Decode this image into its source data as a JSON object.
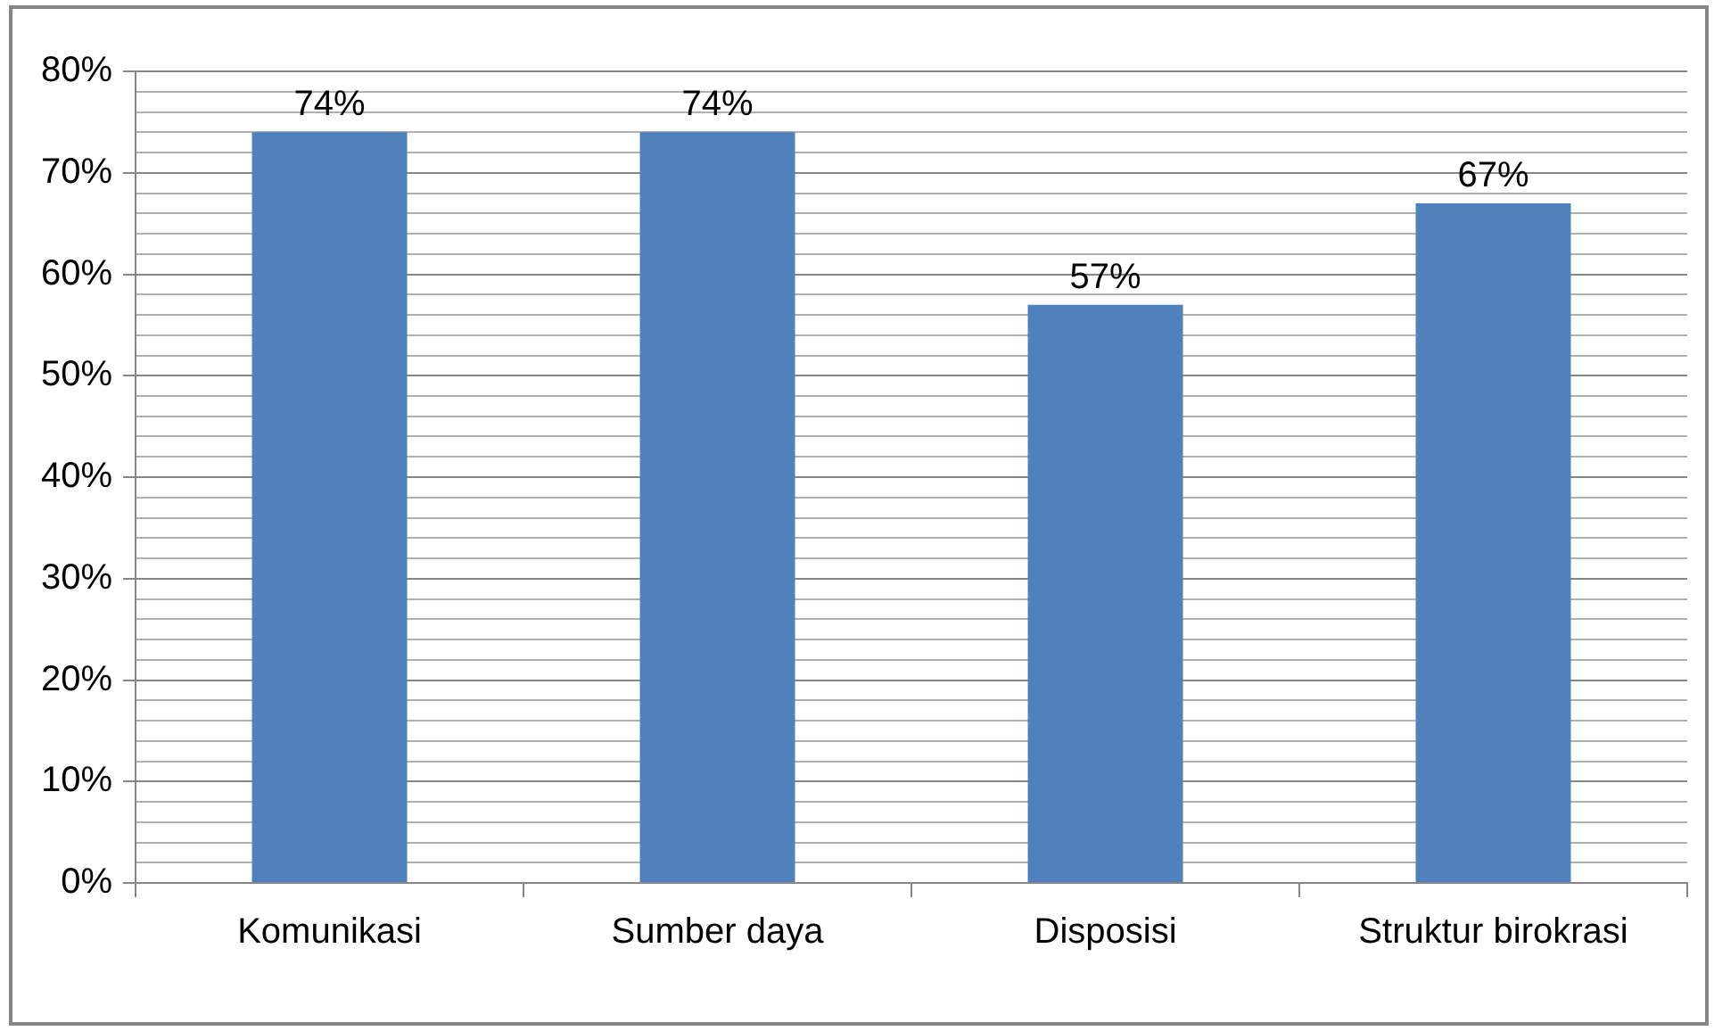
{
  "chart_data": {
    "type": "bar",
    "categories": [
      "Komunikasi",
      "Sumber daya",
      "Disposisi",
      "Struktur birokrasi"
    ],
    "values": [
      74,
      74,
      57,
      67
    ],
    "color": "#4f81bd",
    "value_labels": [
      "74%",
      "74%",
      "57%",
      "67%"
    ],
    "ylim": [
      0,
      80
    ],
    "yticks": [
      {
        "value": 0,
        "label": "0%"
      },
      {
        "value": 2,
        "label": null
      },
      {
        "value": 4,
        "label": null
      },
      {
        "value": 6,
        "label": null
      },
      {
        "value": 8,
        "label": null
      },
      {
        "value": 10,
        "label": "10%"
      },
      {
        "value": 12,
        "label": null
      },
      {
        "value": 14,
        "label": null
      },
      {
        "value": 16,
        "label": null
      },
      {
        "value": 18,
        "label": null
      },
      {
        "value": 20,
        "label": "20%"
      },
      {
        "value": 22,
        "label": null
      },
      {
        "value": 24,
        "label": null
      },
      {
        "value": 26,
        "label": null
      },
      {
        "value": 28,
        "label": null
      },
      {
        "value": 30,
        "label": "30%"
      },
      {
        "value": 32,
        "label": null
      },
      {
        "value": 34,
        "label": null
      },
      {
        "value": 36,
        "label": null
      },
      {
        "value": 38,
        "label": null
      },
      {
        "value": 40,
        "label": "40%"
      },
      {
        "value": 42,
        "label": null
      },
      {
        "value": 44,
        "label": null
      },
      {
        "value": 46,
        "label": null
      },
      {
        "value": 48,
        "label": null
      },
      {
        "value": 50,
        "label": "50%"
      },
      {
        "value": 52,
        "label": null
      },
      {
        "value": 54,
        "label": null
      },
      {
        "value": 56,
        "label": null
      },
      {
        "value": 58,
        "label": null
      },
      {
        "value": 60,
        "label": "60%"
      },
      {
        "value": 62,
        "label": null
      },
      {
        "value": 64,
        "label": null
      },
      {
        "value": 66,
        "label": null
      },
      {
        "value": 68,
        "label": null
      },
      {
        "value": 70,
        "label": "70%"
      },
      {
        "value": 72,
        "label": null
      },
      {
        "value": 74,
        "label": null
      },
      {
        "value": 76,
        "label": null
      },
      {
        "value": 78,
        "label": null
      },
      {
        "value": 80,
        "label": "80%"
      }
    ],
    "grid": true
  }
}
